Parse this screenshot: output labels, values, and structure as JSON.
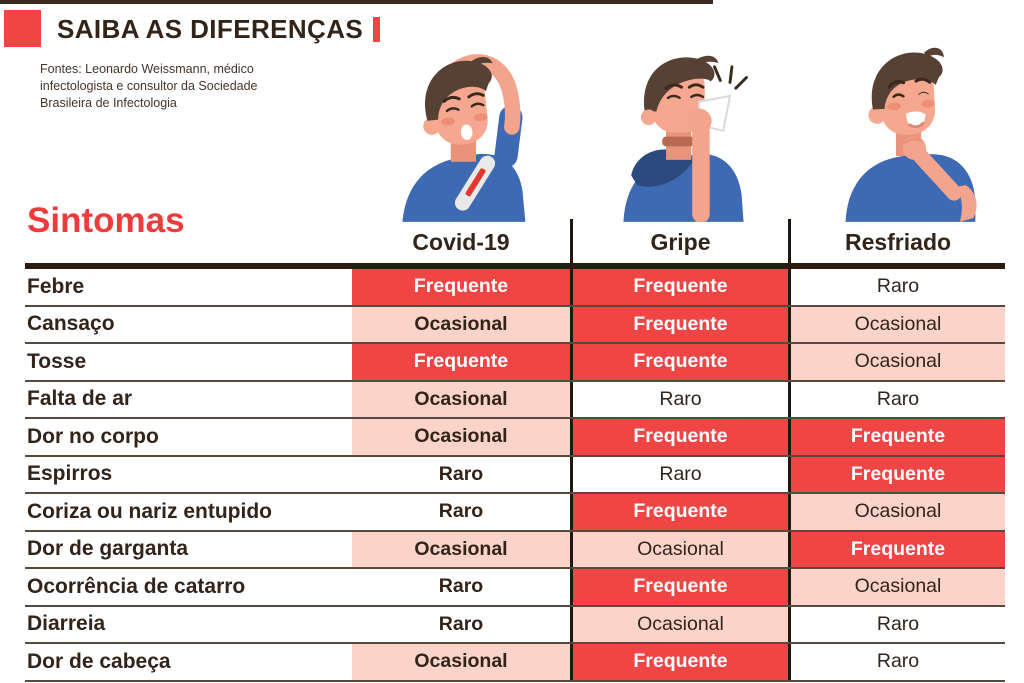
{
  "header": {
    "title": "SAIBA AS DIFERENÇAS",
    "source_lines": [
      "Fontes: Leonardo Weissmann, médico",
      "infectologista e consultor da Sociedade",
      "Brasileira de Infectologia"
    ]
  },
  "table": {
    "row_header_title": "Sintomas",
    "columns": [
      "Covid-19",
      "Gripe",
      "Resfriado"
    ]
  },
  "illustrations": [
    {
      "name": "man-with-fever-and-thermometer",
      "column": "Covid-19"
    },
    {
      "name": "man-coughing-into-tissue",
      "column": "Gripe"
    },
    {
      "name": "man-holding-sore-throat",
      "column": "Resfriado"
    }
  ],
  "colors": {
    "accent_red": "#EF4544",
    "frequente_bg": "#EF4544",
    "frequente_text": "#FFFFFF",
    "ocasional_bg": "#FBD3C9",
    "raro_bg": "#FFFFFF",
    "text_dark": "#33241A",
    "rule_dark": "#2A1B10"
  },
  "chart_data": {
    "type": "table",
    "title": "Sintomas",
    "columns": [
      "Covid-19",
      "Gripe",
      "Resfriado"
    ],
    "value_scale": [
      "Raro",
      "Ocasional",
      "Frequente"
    ],
    "row_labels": [
      "Febre",
      "Cansaço",
      "Tosse",
      "Falta de ar",
      "Dor no corpo",
      "Espirros",
      "Coriza ou nariz entupido",
      "Dor de garganta",
      "Ocorrência de catarro",
      "Diarreia",
      "Dor de cabeça"
    ],
    "values": [
      [
        "Frequente",
        "Frequente",
        "Raro"
      ],
      [
        "Ocasional",
        "Frequente",
        "Ocasional"
      ],
      [
        "Frequente",
        "Frequente",
        "Ocasional"
      ],
      [
        "Ocasional",
        "Raro",
        "Raro"
      ],
      [
        "Ocasional",
        "Frequente",
        "Frequente"
      ],
      [
        "Raro",
        "Raro",
        "Frequente"
      ],
      [
        "Raro",
        "Frequente",
        "Ocasional"
      ],
      [
        "Ocasional",
        "Ocasional",
        "Frequente"
      ],
      [
        "Raro",
        "Frequente",
        "Ocasional"
      ],
      [
        "Raro",
        "Ocasional",
        "Raro"
      ],
      [
        "Ocasional",
        "Frequente",
        "Raro"
      ]
    ]
  }
}
